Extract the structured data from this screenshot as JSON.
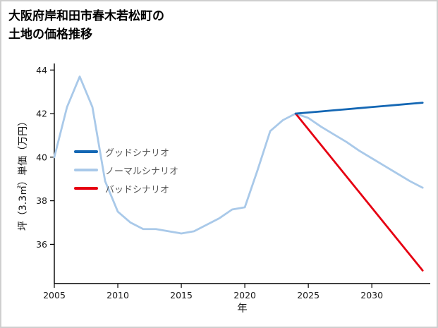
{
  "header": {
    "title_line1": "大阪府岸和田市春木若松町の",
    "title_line2": "土地の価格推移"
  },
  "chart_data": {
    "type": "line",
    "title": "大阪府岸和田市春木若松町の土地の価格推移",
    "xlabel": "年",
    "ylabel": "坪（3.3㎡）単価（万円）",
    "xlim": [
      2005,
      2034.6
    ],
    "ylim": [
      34.2,
      44.3
    ],
    "xticks": [
      2005,
      2010,
      2015,
      2020,
      2025,
      2030
    ],
    "yticks": [
      36,
      38,
      40,
      42,
      44
    ],
    "grid": false,
    "legend_position": "inside-left-middle",
    "series": [
      {
        "name": "グッドシナリオ",
        "color": "#1467b4",
        "x": [
          2024,
          2025,
          2026,
          2027,
          2028,
          2029,
          2030,
          2031,
          2032,
          2033,
          2034
        ],
        "y": [
          42.0,
          42.05,
          42.1,
          42.15,
          42.2,
          42.25,
          42.3,
          42.35,
          42.4,
          42.45,
          42.5
        ]
      },
      {
        "name": "ノーマルシナリオ",
        "color": "#a9c9e9",
        "x": [
          2005,
          2006,
          2007,
          2008,
          2009,
          2010,
          2011,
          2012,
          2013,
          2014,
          2015,
          2016,
          2017,
          2018,
          2019,
          2020,
          2021,
          2022,
          2023,
          2024,
          2025,
          2026,
          2027,
          2028,
          2029,
          2030,
          2031,
          2032,
          2033,
          2034
        ],
        "y": [
          40.0,
          42.3,
          43.7,
          42.3,
          38.9,
          37.5,
          37.0,
          36.7,
          36.7,
          36.6,
          36.5,
          36.6,
          36.9,
          37.2,
          37.6,
          37.7,
          39.4,
          41.2,
          41.7,
          42.0,
          41.8,
          41.4,
          41.05,
          40.7,
          40.3,
          39.95,
          39.6,
          39.25,
          38.9,
          38.6
        ]
      },
      {
        "name": "バッドシナリオ",
        "color": "#e60012",
        "x": [
          2024,
          2025,
          2026,
          2027,
          2028,
          2029,
          2030,
          2031,
          2032,
          2033,
          2034
        ],
        "y": [
          42.0,
          41.28,
          40.56,
          39.84,
          39.12,
          38.4,
          37.68,
          36.96,
          36.24,
          35.52,
          34.8
        ]
      }
    ]
  }
}
